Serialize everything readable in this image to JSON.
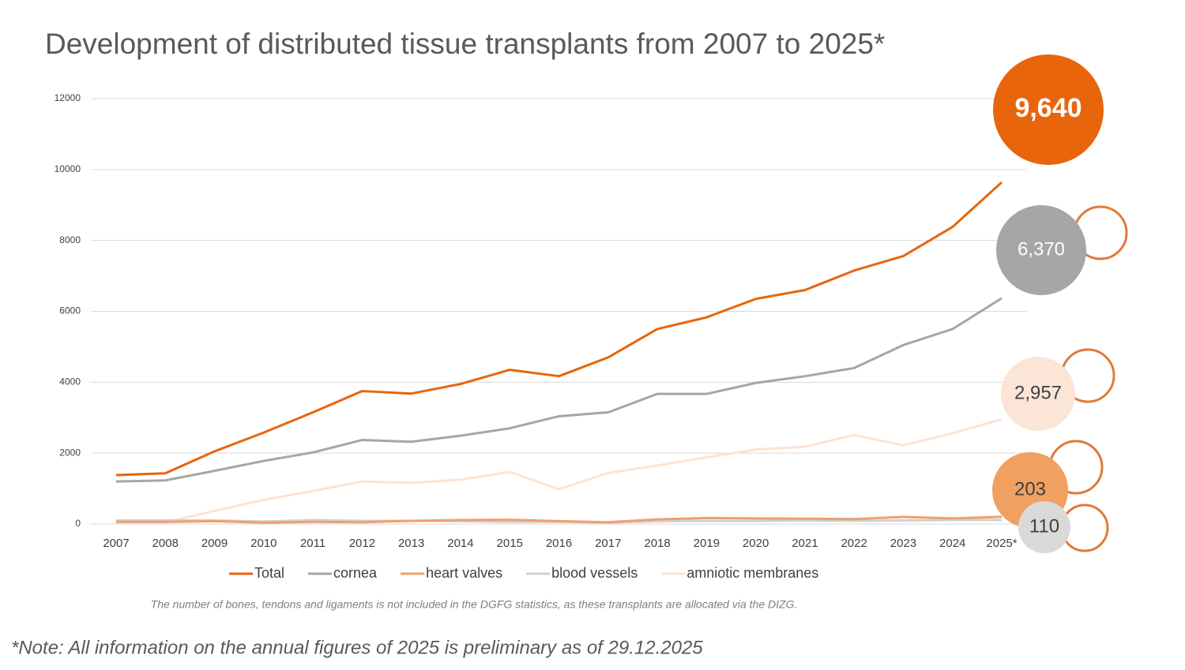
{
  "chart_data": {
    "type": "line",
    "title": "Development of distributed tissue transplants from 2007 to 2025*",
    "categories": [
      "2007",
      "2008",
      "2009",
      "2010",
      "2011",
      "2012",
      "2013",
      "2014",
      "2015",
      "2016",
      "2017",
      "2018",
      "2019",
      "2020",
      "2021",
      "2022",
      "2023",
      "2024",
      "2025*"
    ],
    "series": [
      {
        "name": "Total",
        "color": "#e8650c",
        "callout_label": "9,640",
        "values": [
          1380,
          1430,
          2050,
          2580,
          3150,
          3750,
          3680,
          3950,
          4350,
          4170,
          4700,
          5500,
          5830,
          6350,
          6600,
          7150,
          7560,
          8380,
          9640
        ]
      },
      {
        "name": "cornea",
        "color": "#a6a6a6",
        "callout_label": "6,370",
        "values": [
          1200,
          1230,
          1500,
          1780,
          2020,
          2370,
          2320,
          2490,
          2700,
          3040,
          3150,
          3670,
          3670,
          3980,
          4170,
          4400,
          5050,
          5500,
          6370
        ]
      },
      {
        "name": "heart valves",
        "color": "#f0a06a",
        "callout_label": "203",
        "values": [
          60,
          60,
          80,
          40,
          60,
          50,
          90,
          110,
          120,
          80,
          50,
          130,
          170,
          160,
          150,
          140,
          200,
          160,
          203
        ]
      },
      {
        "name": "blood vessels",
        "color": "#d0d0d0",
        "callout_label": "110",
        "values": [
          100,
          100,
          100,
          70,
          110,
          90,
          90,
          80,
          60,
          60,
          40,
          80,
          90,
          90,
          100,
          90,
          100,
          110,
          110
        ]
      },
      {
        "name": "amniotic membranes",
        "color": "#fbe3d3",
        "callout_label": "2,957",
        "values": [
          50,
          50,
          370,
          680,
          930,
          1200,
          1160,
          1250,
          1470,
          980,
          1440,
          1650,
          1880,
          2100,
          2180,
          2510,
          2220,
          2560,
          2957
        ]
      }
    ],
    "ylim": [
      0,
      12000
    ],
    "yticks": [
      0,
      2000,
      4000,
      6000,
      8000,
      10000,
      12000
    ],
    "grid": true,
    "footnote": "The number of bones, tendons and ligaments is not included in the DGFG statistics, as these transplants are allocated via the DIZG.",
    "note": "*Note: All information on the annual figures of 2025 is preliminary as of 29.12.2025"
  }
}
